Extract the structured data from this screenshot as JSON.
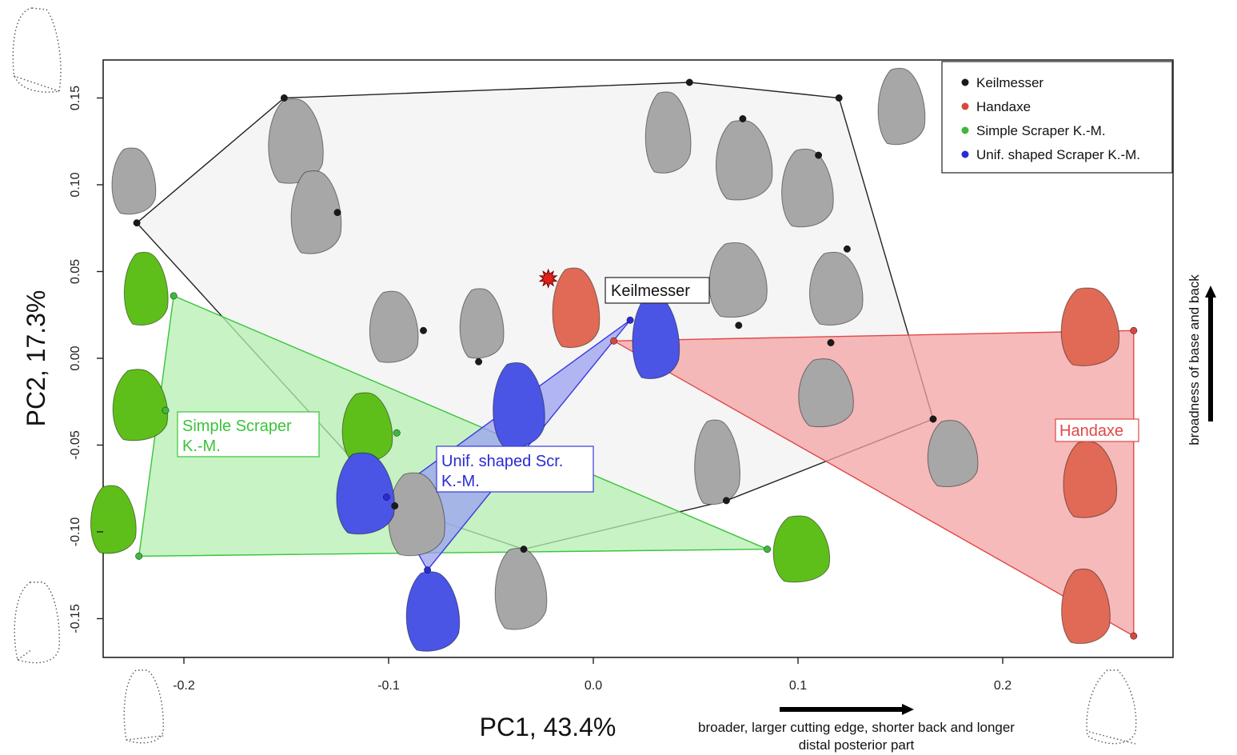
{
  "chart_data": {
    "type": "scatter",
    "xlabel": "PC1, 43.4%",
    "ylabel": "PC2, 17.3%",
    "xlim": [
      -0.245,
      0.285
    ],
    "ylim": [
      -0.172,
      0.172
    ],
    "x_ticks": [
      "-0.2",
      "-0.1",
      "0.0",
      "0.1",
      "0.2"
    ],
    "y_ticks": [
      "-0.15",
      "-0.10",
      "-0.05",
      "0.00",
      "0.05",
      "0.10",
      "0.15"
    ],
    "x_annotation": "broader, larger cutting edge, shorter back and longer",
    "x_annotation_line2": "distal posterior part",
    "y_annotation": "broadness of base and back",
    "legend_position": "top-right",
    "legend": [
      {
        "name": "Keilmesser",
        "color": "#1a1a1a"
      },
      {
        "name": "Handaxe",
        "color": "#d9473a"
      },
      {
        "name": "Simple Scraper K.-M.",
        "color": "#3cb83c"
      },
      {
        "name": "Unif. shaped Scraper K.-M.",
        "color": "#2a2ad6"
      }
    ],
    "hull_labels": {
      "keilmesser": "Keilmesser",
      "handaxe": "Handaxe",
      "simple_line1": "Simple Scraper",
      "simple_line2": "K.-M.",
      "unif_line1": "Unif. shaped Scr.",
      "unif_line2": "K.-M."
    },
    "series": [
      {
        "name": "Keilmesser",
        "color": "#1a1a1a",
        "points": [
          [
            -0.223,
            0.078
          ],
          [
            -0.151,
            0.15
          ],
          [
            0.047,
            0.159
          ],
          [
            0.12,
            0.15
          ],
          [
            0.073,
            0.138
          ],
          [
            0.11,
            0.117
          ],
          [
            -0.125,
            0.084
          ],
          [
            0.124,
            0.063
          ],
          [
            -0.083,
            0.016
          ],
          [
            0.071,
            0.019
          ],
          [
            -0.056,
            -0.002
          ],
          [
            0.116,
            0.009
          ],
          [
            0.166,
            -0.035
          ],
          [
            -0.04,
            -0.058
          ],
          [
            0.065,
            -0.082
          ],
          [
            -0.097,
            -0.085
          ],
          [
            -0.034,
            -0.11
          ]
        ],
        "hull": [
          [
            -0.223,
            0.078
          ],
          [
            -0.151,
            0.15
          ],
          [
            0.047,
            0.159
          ],
          [
            0.12,
            0.15
          ],
          [
            0.166,
            -0.035
          ],
          [
            0.065,
            -0.082
          ],
          [
            -0.034,
            -0.11
          ],
          [
            -0.097,
            -0.085
          ]
        ]
      },
      {
        "name": "Handaxe",
        "color": "#d9473a",
        "points": [
          [
            0.01,
            0.01
          ],
          [
            0.264,
            0.016
          ],
          [
            0.264,
            -0.16
          ],
          [
            0.245,
            -0.041
          ]
        ],
        "hull": [
          [
            0.01,
            0.01
          ],
          [
            0.264,
            0.016
          ],
          [
            0.264,
            -0.16
          ]
        ]
      },
      {
        "name": "Simple Scraper K.-M.",
        "color": "#3cb83c",
        "points": [
          [
            -0.205,
            0.036
          ],
          [
            -0.209,
            -0.03
          ],
          [
            -0.096,
            -0.043
          ],
          [
            -0.222,
            -0.114
          ],
          [
            0.085,
            -0.11
          ]
        ],
        "hull": [
          [
            -0.205,
            0.036
          ],
          [
            -0.222,
            -0.114
          ],
          [
            0.085,
            -0.11
          ]
        ]
      },
      {
        "name": "Unif. shaped Scraper K.-M.",
        "color": "#2a2ad6",
        "points": [
          [
            0.018,
            0.022
          ],
          [
            -0.101,
            -0.08
          ],
          [
            -0.081,
            -0.122
          ],
          [
            -0.04,
            -0.058
          ]
        ],
        "hull": [
          [
            0.018,
            0.022
          ],
          [
            -0.101,
            -0.08
          ],
          [
            -0.081,
            -0.122
          ]
        ]
      }
    ],
    "star_marker": [
      -0.022,
      0.046
    ],
    "artifact_silhouettes": [
      {
        "group": "Keilmesser",
        "center": [
          -0.225,
          0.102
        ]
      },
      {
        "group": "Keilmesser",
        "center": [
          -0.146,
          0.125
        ]
      },
      {
        "group": "Keilmesser",
        "center": [
          -0.136,
          0.084
        ]
      },
      {
        "group": "Keilmesser",
        "center": [
          0.036,
          0.13
        ]
      },
      {
        "group": "Keilmesser",
        "center": [
          0.073,
          0.114
        ]
      },
      {
        "group": "Keilmesser",
        "center": [
          0.104,
          0.098
        ]
      },
      {
        "group": "Keilmesser",
        "center": [
          0.15,
          0.145
        ]
      },
      {
        "group": "Keilmesser",
        "center": [
          0.07,
          0.045
        ]
      },
      {
        "group": "Keilmesser",
        "center": [
          0.118,
          0.04
        ]
      },
      {
        "group": "Keilmesser",
        "center": [
          -0.098,
          0.018
        ]
      },
      {
        "group": "Keilmesser",
        "center": [
          -0.055,
          0.02
        ]
      },
      {
        "group": "Keilmesser",
        "center": [
          0.113,
          -0.02
        ]
      },
      {
        "group": "Keilmesser",
        "center": [
          0.175,
          -0.055
        ]
      },
      {
        "group": "Keilmesser",
        "center": [
          0.06,
          -0.06
        ]
      },
      {
        "group": "Keilmesser",
        "center": [
          -0.087,
          -0.09
        ]
      },
      {
        "group": "Keilmesser",
        "center": [
          -0.036,
          -0.133
        ]
      },
      {
        "group": "Handaxe",
        "center": [
          -0.009,
          0.029
        ]
      },
      {
        "group": "Handaxe",
        "center": [
          0.242,
          0.018
        ]
      },
      {
        "group": "Handaxe",
        "center": [
          0.242,
          -0.07
        ]
      },
      {
        "group": "Handaxe",
        "center": [
          0.24,
          -0.143
        ]
      },
      {
        "group": "Simple Scraper K.-M.",
        "center": [
          -0.219,
          0.04
        ]
      },
      {
        "group": "Simple Scraper K.-M.",
        "center": [
          -0.222,
          -0.027
        ]
      },
      {
        "group": "Simple Scraper K.-M.",
        "center": [
          -0.111,
          -0.04
        ]
      },
      {
        "group": "Simple Scraper K.-M.",
        "center": [
          -0.235,
          -0.093
        ]
      },
      {
        "group": "Simple Scraper K.-M.",
        "center": [
          0.101,
          -0.11
        ]
      },
      {
        "group": "Unif. shaped Scraper K.-M.",
        "center": [
          -0.037,
          -0.027
        ]
      },
      {
        "group": "Unif. shaped Scraper K.-M.",
        "center": [
          0.03,
          0.012
        ]
      },
      {
        "group": "Unif. shaped Scraper K.-M.",
        "center": [
          -0.112,
          -0.078
        ]
      },
      {
        "group": "Unif. shaped Scraper K.-M.",
        "center": [
          -0.079,
          -0.146
        ]
      }
    ],
    "silhouette_colors": {
      "Keilmesser": "#a7a7a7",
      "Handaxe": "#e06a55",
      "Simple Scraper K.-M.": "#5fbf1a",
      "Unif. shaped Scraper K.-M.": "#4a55e6"
    },
    "hull_colors": {
      "Keilmesser": {
        "fill": "#f3f3f3",
        "stroke": "#222222"
      },
      "Handaxe": {
        "fill": "#f3a3a3",
        "stroke": "#e04848"
      },
      "Simple Scraper K.-M.": {
        "fill": "#b5efb0",
        "stroke": "#39c439"
      },
      "Unif. shaped Scraper K.-M.": {
        "fill": "#9aa0f0",
        "stroke": "#3a3adf"
      }
    }
  }
}
